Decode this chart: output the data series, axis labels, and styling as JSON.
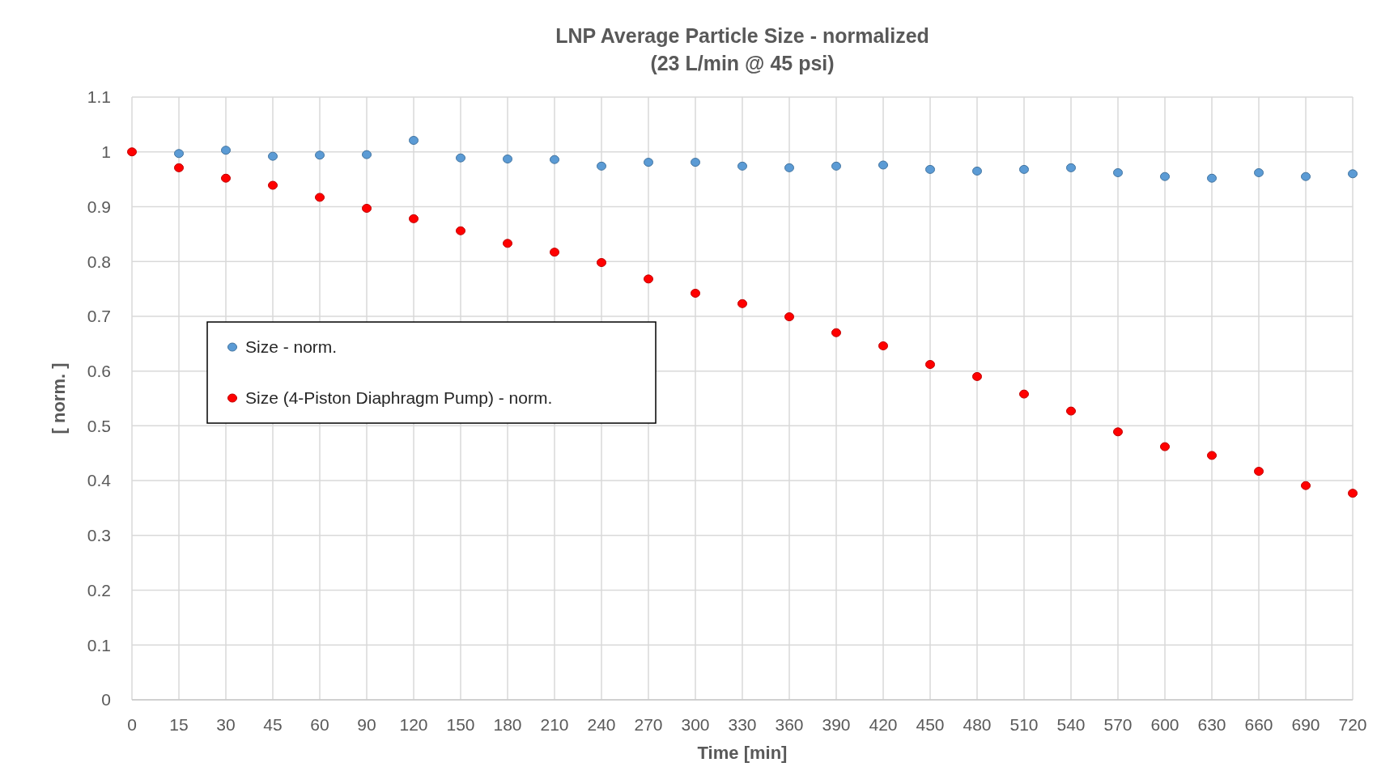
{
  "chart_data": {
    "type": "scatter",
    "title": "LNP Average Particle Size - normalized",
    "subtitle": "(23 L/min @ 45 psi)",
    "xlabel": "Time [min]",
    "ylabel": "[ norm. ]",
    "categories": [
      "0",
      "15",
      "30",
      "45",
      "60",
      "90",
      "120",
      "150",
      "180",
      "210",
      "240",
      "270",
      "300",
      "330",
      "360",
      "390",
      "420",
      "450",
      "480",
      "510",
      "540",
      "570",
      "600",
      "630",
      "660",
      "690",
      "720"
    ],
    "series": [
      {
        "name": "Size - norm.",
        "color": "#5b9bd5",
        "values": [
          null,
          0.997,
          1.003,
          0.992,
          0.994,
          0.995,
          1.021,
          0.989,
          0.987,
          0.986,
          0.974,
          0.981,
          0.981,
          0.974,
          0.971,
          0.974,
          0.976,
          0.968,
          0.965,
          0.968,
          0.971,
          0.962,
          0.955,
          0.952,
          0.962,
          0.955,
          0.96
        ]
      },
      {
        "name": "Size (4-Piston Diaphragm Pump) - norm.",
        "color": "#ff0000",
        "values": [
          1.0,
          0.971,
          0.952,
          0.939,
          0.917,
          0.897,
          0.878,
          0.856,
          0.833,
          0.817,
          0.798,
          0.768,
          0.742,
          0.723,
          0.699,
          0.67,
          0.646,
          0.612,
          0.59,
          0.558,
          0.527,
          0.489,
          0.462,
          0.446,
          0.417,
          0.391,
          0.377
        ]
      }
    ],
    "ylim": [
      0,
      1.1
    ],
    "yticks": [
      0,
      0.1,
      0.2,
      0.3,
      0.4,
      0.5,
      0.6,
      0.7,
      0.8,
      0.9,
      1,
      1.1
    ],
    "grid": true,
    "legend": "left",
    "marker": "circle"
  }
}
